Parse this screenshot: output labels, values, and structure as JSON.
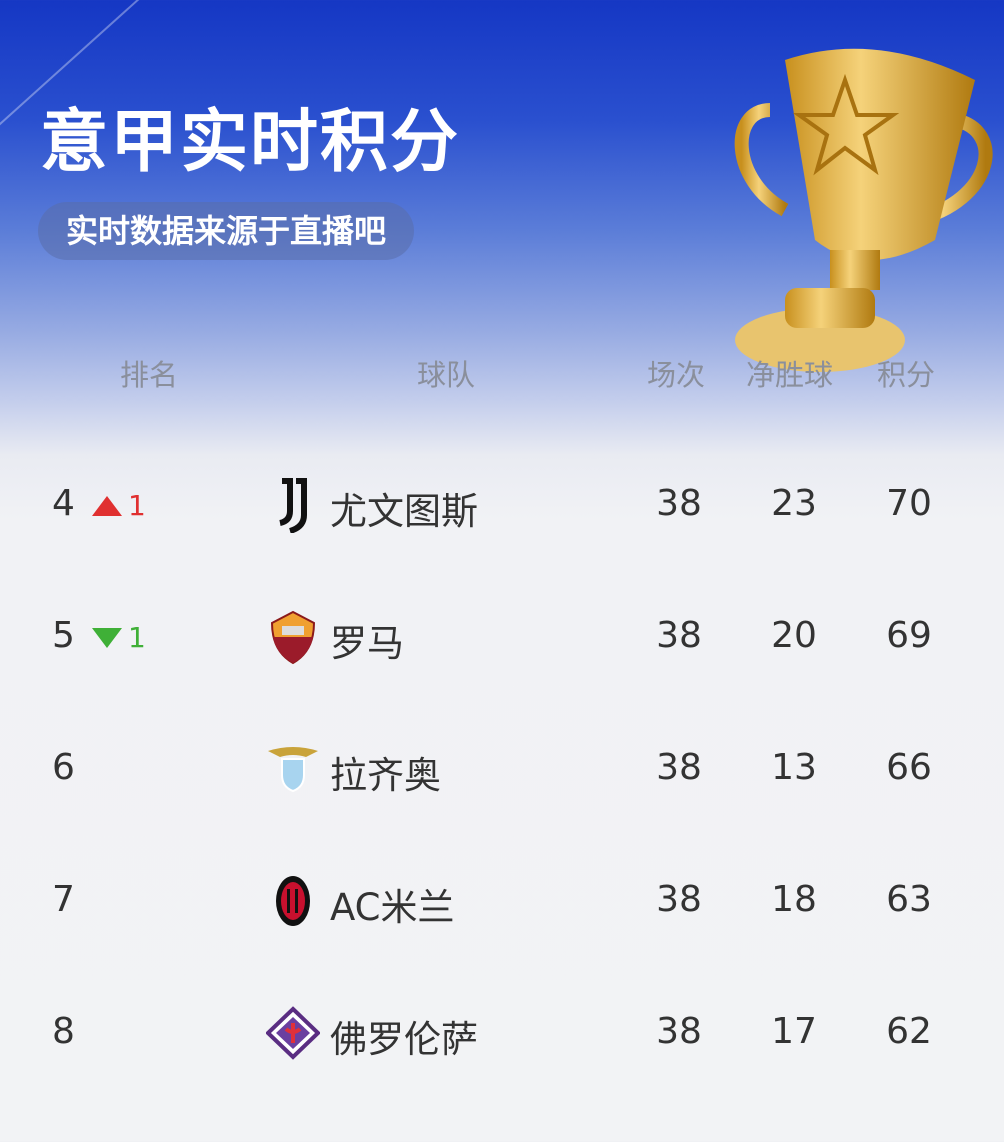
{
  "header": {
    "title": "意甲实时积分",
    "source_label": "实时数据来源于直播吧"
  },
  "columns": {
    "rank": "排名",
    "team": "球队",
    "played": "场次",
    "goal_diff": "净胜球",
    "points": "积分"
  },
  "colors": {
    "up": "#e03030",
    "down": "#3fb037",
    "accent": "#1537c4"
  },
  "rows": [
    {
      "rank": "4",
      "trend": "up",
      "change": "1",
      "team": "尤文图斯",
      "logo": "juventus-logo",
      "played": "38",
      "goal_diff": "23",
      "points": "70"
    },
    {
      "rank": "5",
      "trend": "down",
      "change": "1",
      "team": "罗马",
      "logo": "roma-logo",
      "played": "38",
      "goal_diff": "20",
      "points": "69"
    },
    {
      "rank": "6",
      "trend": "",
      "change": "",
      "team": "拉齐奥",
      "logo": "lazio-logo",
      "played": "38",
      "goal_diff": "13",
      "points": "66"
    },
    {
      "rank": "7",
      "trend": "",
      "change": "",
      "team": "AC米兰",
      "logo": "ac-milan-logo",
      "played": "38",
      "goal_diff": "18",
      "points": "63"
    },
    {
      "rank": "8",
      "trend": "",
      "change": "",
      "team": "佛罗伦萨",
      "logo": "fiorentina-logo",
      "played": "38",
      "goal_diff": "17",
      "points": "62"
    }
  ]
}
